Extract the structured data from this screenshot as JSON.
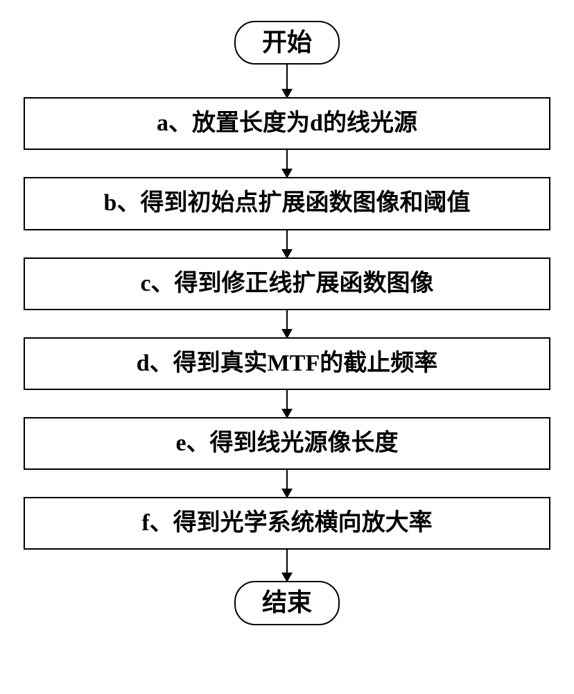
{
  "flowchart": {
    "type": "flowchart",
    "background_color": "#ffffff",
    "border_color": "#000000",
    "text_color": "#000000",
    "font_family": "SimSun",
    "terminator_fontsize": 36,
    "process_fontsize": 34,
    "border_width": 2,
    "terminator_radius": 30,
    "arrow_line_width": 2.5,
    "arrow_head_size": 14,
    "arrow_heights": [
      38,
      30,
      30,
      30,
      30,
      30,
      36
    ],
    "nodes": {
      "start": {
        "type": "terminator",
        "label": "开始"
      },
      "step_a": {
        "type": "process",
        "label": "a、放置长度为d的线光源"
      },
      "step_b": {
        "type": "process",
        "label": "b、得到初始点扩展函数图像和阈值"
      },
      "step_c": {
        "type": "process",
        "label": "c、得到修正线扩展函数图像"
      },
      "step_d": {
        "type": "process",
        "label": "d、得到真实MTF的截止频率"
      },
      "step_e": {
        "type": "process",
        "label": "e、得到线光源像长度"
      },
      "step_f": {
        "type": "process",
        "label": "f、得到光学系统横向放大率"
      },
      "end": {
        "type": "terminator",
        "label": "结束"
      }
    },
    "edges": [
      {
        "from": "start",
        "to": "step_a"
      },
      {
        "from": "step_a",
        "to": "step_b"
      },
      {
        "from": "step_b",
        "to": "step_c"
      },
      {
        "from": "step_c",
        "to": "step_d"
      },
      {
        "from": "step_d",
        "to": "step_e"
      },
      {
        "from": "step_e",
        "to": "step_f"
      },
      {
        "from": "step_f",
        "to": "end"
      }
    ]
  }
}
